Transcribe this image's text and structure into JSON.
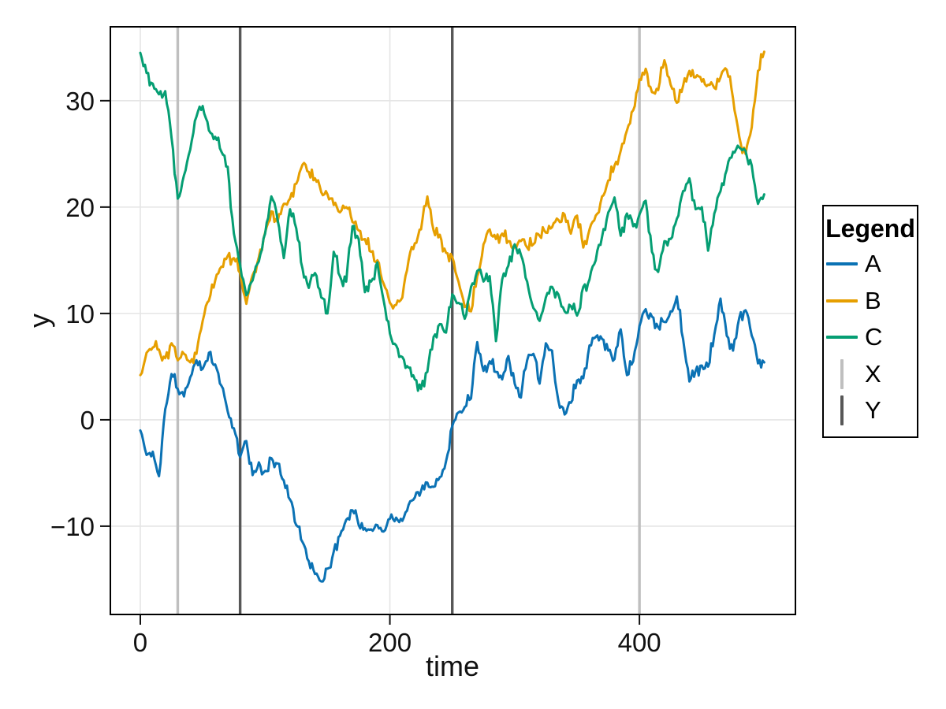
{
  "chart_data": {
    "type": "line",
    "title": "",
    "xlabel": "time",
    "ylabel": "y",
    "xlim": [
      -24,
      525
    ],
    "ylim": [
      -18.3,
      36.95
    ],
    "grid": true,
    "xticks": {
      "values": [
        0,
        200,
        400
      ],
      "labels": [
        "0",
        "200",
        "400"
      ]
    },
    "yticks": {
      "values": [
        -10,
        0,
        10,
        20,
        30
      ],
      "labels": [
        "−10",
        "0",
        "10",
        "20",
        "30"
      ]
    },
    "x_step": 5,
    "x_start": 0,
    "series": [
      {
        "name": "A",
        "color": "#0B72B4",
        "values": [
          -1.0,
          -3.3,
          -3.0,
          -5.3,
          1.0,
          4.3,
          2.9,
          2.2,
          4.0,
          5.6,
          4.8,
          6.3,
          5.2,
          3.2,
          0.8,
          -0.8,
          -3.5,
          -2.0,
          -5.2,
          -4.0,
          -4.8,
          -3.6,
          -4.1,
          -5.7,
          -7.5,
          -9.9,
          -11.5,
          -13.3,
          -14.5,
          -15.2,
          -14.0,
          -12.4,
          -10.9,
          -9.4,
          -8.5,
          -9.9,
          -10.2,
          -10.3,
          -9.9,
          -10.5,
          -9.3,
          -9.2,
          -9.5,
          -8.0,
          -7.3,
          -6.7,
          -5.9,
          -6.3,
          -5.4,
          -3.9,
          -0.6,
          0.7,
          1.2,
          2.0,
          7.3,
          4.6,
          5.5,
          4.5,
          3.8,
          6.0,
          3.4,
          2.1,
          5.6,
          6.2,
          3.4,
          7.2,
          6.5,
          1.8,
          0.5,
          1.6,
          3.7,
          3.9,
          7.0,
          7.8,
          7.6,
          6.5,
          5.7,
          8.5,
          4.2,
          5.5,
          8.8,
          10.4,
          9.7,
          8.7,
          9.2,
          10.2,
          11.6,
          7.6,
          3.6,
          4.6,
          5.1,
          5.0,
          8.0,
          11.4,
          7.9,
          6.5,
          9.6,
          10.3,
          7.9,
          5.3,
          5.4
        ]
      },
      {
        "name": "B",
        "color": "#E69F00",
        "values": [
          4.2,
          6.3,
          6.8,
          6.6,
          5.8,
          7.2,
          5.6,
          6.2,
          5.4,
          6.2,
          9.3,
          11.2,
          13.1,
          14.4,
          15.4,
          15.2,
          13.8,
          10.9,
          13.6,
          15.3,
          17.6,
          19.6,
          18.6,
          20.3,
          20.8,
          22.2,
          24.0,
          23.3,
          22.7,
          21.4,
          21.2,
          20.2,
          19.5,
          20.0,
          18.6,
          17.8,
          17.0,
          15.8,
          15.0,
          12.8,
          11.0,
          10.8,
          11.5,
          15.0,
          16.6,
          17.9,
          21.0,
          17.8,
          17.4,
          15.7,
          15.3,
          13.0,
          10.6,
          10.2,
          13.5,
          16.5,
          17.9,
          17.0,
          17.5,
          16.8,
          16.3,
          16.8,
          16.2,
          16.5,
          17.3,
          17.6,
          18.1,
          18.8,
          19.3,
          17.5,
          19.2,
          16.2,
          17.9,
          19.2,
          21.0,
          22.5,
          23.9,
          25.3,
          27.2,
          29.1,
          32.0,
          33.0,
          30.8,
          31.0,
          33.8,
          31.5,
          29.8,
          31.4,
          32.8,
          32.2,
          31.8,
          31.5,
          31.2,
          32.2,
          32.9,
          30.2,
          26.6,
          25.0,
          27.5,
          32.8,
          34.6
        ]
      },
      {
        "name": "C",
        "color": "#059E73",
        "values": [
          34.5,
          32.6,
          31.6,
          30.6,
          30.9,
          26.5,
          20.8,
          23.0,
          25.4,
          28.5,
          29.5,
          27.2,
          26.6,
          25.2,
          23.8,
          17.5,
          14.6,
          11.7,
          13.1,
          14.9,
          17.5,
          21.0,
          18.8,
          15.2,
          19.8,
          18.0,
          14.2,
          12.4,
          13.8,
          11.5,
          10.0,
          15.8,
          13.5,
          13.0,
          18.2,
          17.0,
          12.0,
          13.0,
          14.8,
          11.2,
          8.1,
          7.0,
          5.9,
          4.9,
          3.8,
          2.9,
          4.5,
          7.8,
          9.0,
          8.2,
          11.8,
          11.0,
          9.5,
          12.5,
          14.0,
          13.0,
          13.5,
          7.4,
          13.2,
          14.5,
          16.5,
          15.5,
          13.0,
          10.5,
          9.3,
          11.5,
          12.5,
          11.8,
          10.2,
          10.7,
          9.8,
          12.5,
          13.2,
          15.0,
          17.2,
          19.5,
          20.9,
          17.3,
          19.4,
          18.2,
          19.3,
          20.6,
          15.8,
          13.9,
          16.8,
          17.0,
          18.9,
          21.5,
          22.7,
          19.8,
          20.0,
          15.9,
          19.4,
          21.5,
          23.5,
          25.2,
          25.6,
          25.3,
          23.9,
          20.3,
          21.2
        ]
      }
    ],
    "vlines": [
      {
        "name": "X",
        "color": "#BFBFBF",
        "positions": [
          30,
          400
        ]
      },
      {
        "name": "Y",
        "color": "#575757",
        "positions": [
          80,
          250
        ]
      }
    ],
    "legend": {
      "title": "Legend",
      "position": "right",
      "entries": [
        {
          "label": "A",
          "swatch": "line",
          "color": "#0B72B4"
        },
        {
          "label": "B",
          "swatch": "line",
          "color": "#E69F00"
        },
        {
          "label": "C",
          "swatch": "line",
          "color": "#059E73"
        },
        {
          "label": "X",
          "swatch": "vline",
          "color": "#BFBFBF"
        },
        {
          "label": "Y",
          "swatch": "vline",
          "color": "#575757"
        }
      ]
    },
    "colors": {
      "grid": "#E5E5E5",
      "spine": "#000000",
      "background": "#FFFFFF"
    }
  }
}
